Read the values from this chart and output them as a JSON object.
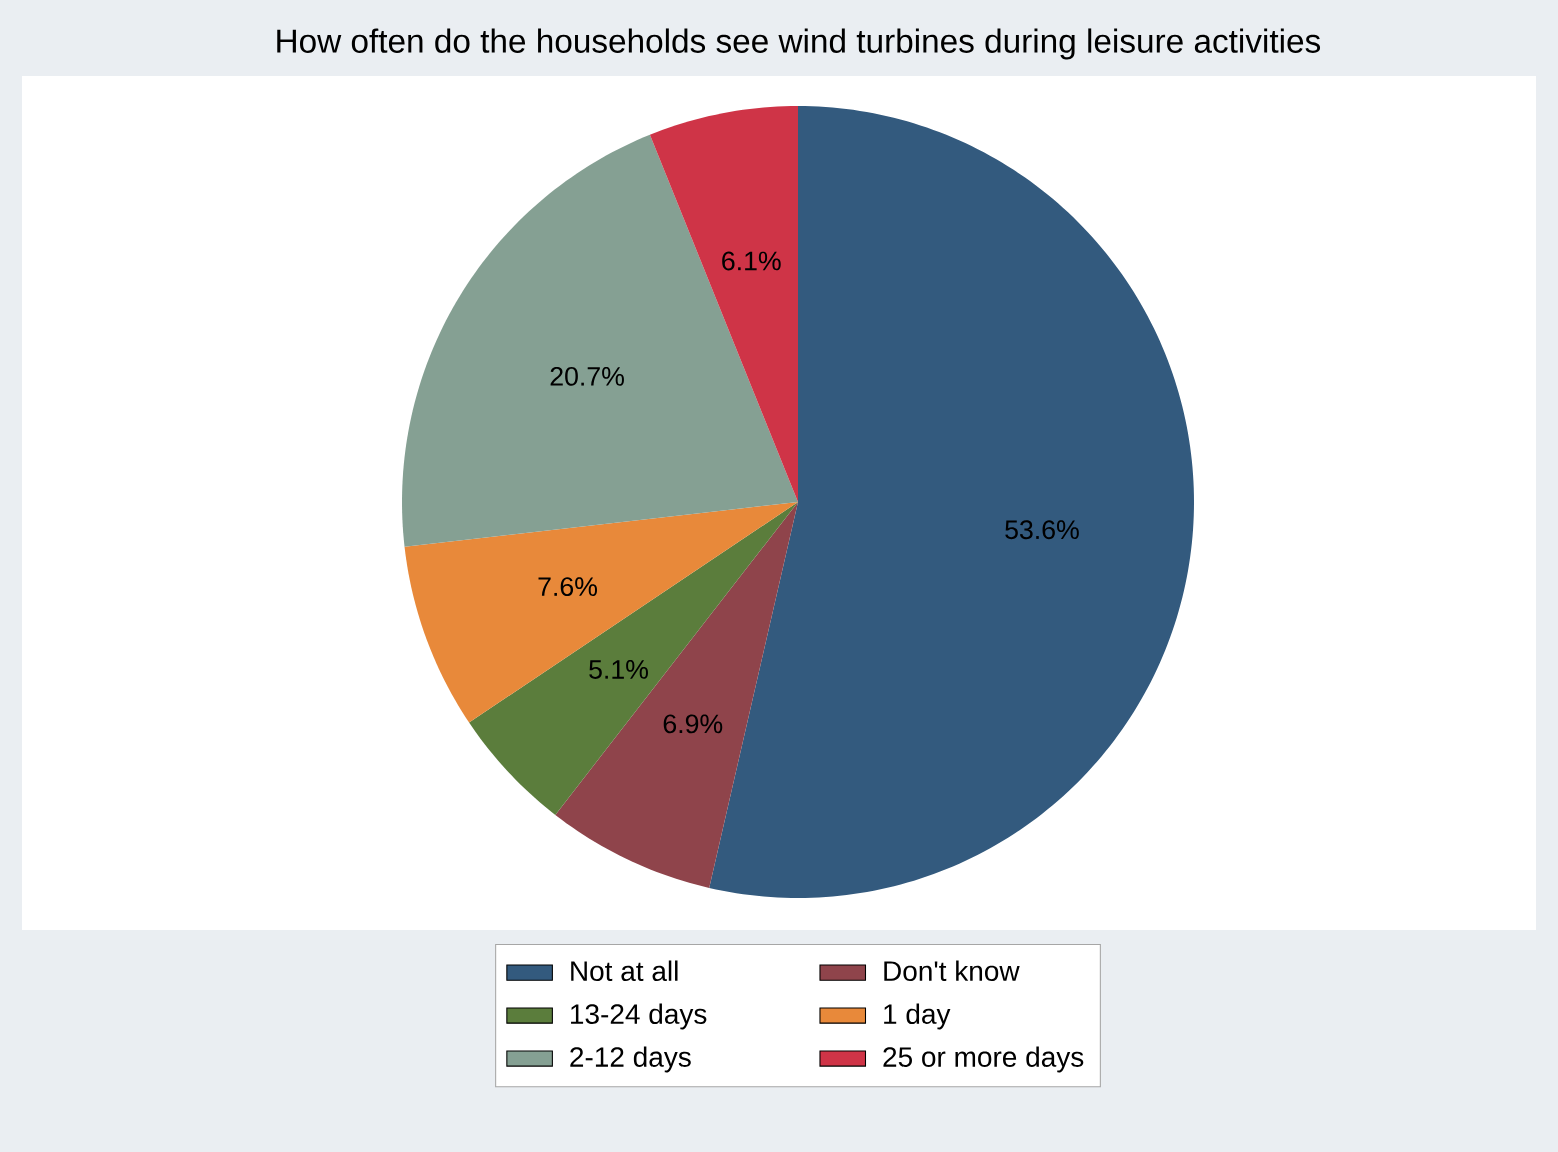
{
  "chart_data": {
    "type": "pie",
    "title": "How often do the households see wind turbines during leisure activities",
    "categories": [
      "Not at all",
      "Don't know",
      "13-24 days",
      "1 day",
      "2-12 days",
      "25 or more days"
    ],
    "values": [
      53.6,
      6.9,
      5.1,
      7.6,
      20.7,
      6.1
    ],
    "value_labels": [
      "53.6%",
      "6.9%",
      "5.1%",
      "7.6%",
      "20.7%",
      "6.1%"
    ],
    "colors": [
      "#335a7e",
      "#8f444b",
      "#5b7d3c",
      "#e8893a",
      "#85a093",
      "#cf3447"
    ],
    "legend": "bottom"
  }
}
